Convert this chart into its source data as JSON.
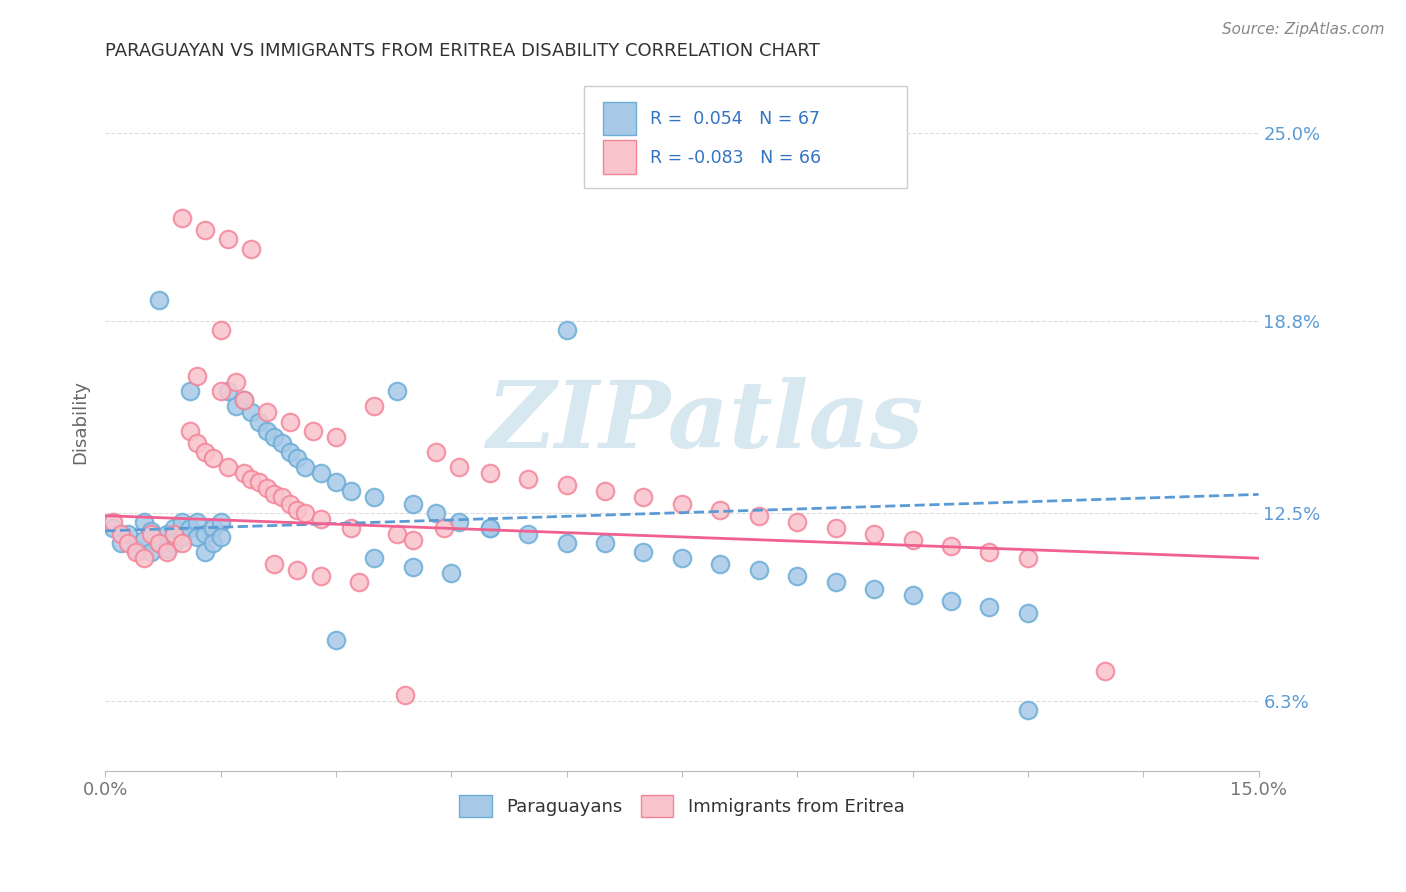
{
  "title": "PARAGUAYAN VS IMMIGRANTS FROM ERITREA DISABILITY CORRELATION CHART",
  "source_text": "Source: ZipAtlas.com",
  "ylabel": "Disability",
  "xlim": [
    0.0,
    0.15
  ],
  "ylim": [
    0.04,
    0.27
  ],
  "yticks": [
    0.063,
    0.125,
    0.188,
    0.25
  ],
  "xtick_positions": [
    0.0,
    0.015,
    0.03,
    0.045,
    0.06,
    0.075,
    0.09,
    0.105,
    0.12,
    0.135,
    0.15
  ],
  "blue_R": 0.054,
  "blue_N": 67,
  "pink_R": -0.083,
  "pink_N": 66,
  "blue_color": "#a8c8e8",
  "blue_edge_color": "#6baed6",
  "pink_color": "#f9c4cc",
  "pink_edge_color": "#f48498",
  "blue_line_color": "#5b9bd5",
  "pink_line_color": "#f06090",
  "legend_blue_label": "Paraguayans",
  "legend_pink_label": "Immigrants from Eritrea",
  "watermark_text": "ZIPatlas",
  "watermark_color": "#d8e8f0",
  "background_color": "#ffffff",
  "title_color": "#333333",
  "axis_label_color": "#666666",
  "tick_label_color": "#777777",
  "right_tick_color": "#5b9bd5",
  "grid_color": "#dddddd",
  "blue_trend_start_y": 0.119,
  "blue_trend_end_y": 0.131,
  "pink_trend_start_y": 0.124,
  "pink_trend_end_y": 0.11,
  "blue_scatter_x": [
    0.001,
    0.002,
    0.003,
    0.004,
    0.005,
    0.005,
    0.006,
    0.006,
    0.007,
    0.007,
    0.008,
    0.008,
    0.009,
    0.009,
    0.01,
    0.01,
    0.011,
    0.011,
    0.012,
    0.012,
    0.013,
    0.013,
    0.014,
    0.014,
    0.015,
    0.015,
    0.016,
    0.017,
    0.018,
    0.019,
    0.02,
    0.021,
    0.022,
    0.023,
    0.024,
    0.025,
    0.026,
    0.028,
    0.03,
    0.032,
    0.035,
    0.038,
    0.04,
    0.043,
    0.046,
    0.05,
    0.055,
    0.06,
    0.065,
    0.07,
    0.075,
    0.08,
    0.085,
    0.09,
    0.095,
    0.1,
    0.105,
    0.11,
    0.115,
    0.12,
    0.03,
    0.035,
    0.04,
    0.045,
    0.05,
    0.06,
    0.12
  ],
  "blue_scatter_y": [
    0.12,
    0.115,
    0.118,
    0.113,
    0.122,
    0.116,
    0.119,
    0.112,
    0.195,
    0.115,
    0.118,
    0.113,
    0.12,
    0.115,
    0.122,
    0.117,
    0.12,
    0.165,
    0.122,
    0.117,
    0.118,
    0.112,
    0.12,
    0.115,
    0.122,
    0.117,
    0.165,
    0.16,
    0.162,
    0.158,
    0.155,
    0.152,
    0.15,
    0.148,
    0.145,
    0.143,
    0.14,
    0.138,
    0.135,
    0.132,
    0.13,
    0.165,
    0.128,
    0.125,
    0.122,
    0.12,
    0.118,
    0.185,
    0.115,
    0.112,
    0.11,
    0.108,
    0.106,
    0.104,
    0.102,
    0.1,
    0.098,
    0.096,
    0.094,
    0.092,
    0.083,
    0.11,
    0.107,
    0.105,
    0.12,
    0.115,
    0.06
  ],
  "pink_scatter_x": [
    0.001,
    0.002,
    0.003,
    0.004,
    0.005,
    0.006,
    0.007,
    0.008,
    0.009,
    0.01,
    0.011,
    0.012,
    0.013,
    0.014,
    0.015,
    0.016,
    0.017,
    0.018,
    0.019,
    0.02,
    0.021,
    0.022,
    0.023,
    0.024,
    0.025,
    0.026,
    0.028,
    0.03,
    0.032,
    0.035,
    0.038,
    0.04,
    0.043,
    0.046,
    0.05,
    0.055,
    0.06,
    0.065,
    0.07,
    0.075,
    0.08,
    0.085,
    0.09,
    0.095,
    0.1,
    0.105,
    0.11,
    0.115,
    0.12,
    0.13,
    0.012,
    0.015,
    0.018,
    0.021,
    0.024,
    0.027,
    0.01,
    0.013,
    0.016,
    0.019,
    0.022,
    0.025,
    0.028,
    0.033,
    0.039,
    0.044
  ],
  "pink_scatter_y": [
    0.122,
    0.118,
    0.115,
    0.112,
    0.11,
    0.118,
    0.115,
    0.112,
    0.118,
    0.115,
    0.152,
    0.148,
    0.145,
    0.143,
    0.185,
    0.14,
    0.168,
    0.138,
    0.136,
    0.135,
    0.133,
    0.131,
    0.13,
    0.128,
    0.126,
    0.125,
    0.123,
    0.15,
    0.12,
    0.16,
    0.118,
    0.116,
    0.145,
    0.14,
    0.138,
    0.136,
    0.134,
    0.132,
    0.13,
    0.128,
    0.126,
    0.124,
    0.122,
    0.12,
    0.118,
    0.116,
    0.114,
    0.112,
    0.11,
    0.073,
    0.17,
    0.165,
    0.162,
    0.158,
    0.155,
    0.152,
    0.222,
    0.218,
    0.215,
    0.212,
    0.108,
    0.106,
    0.104,
    0.102,
    0.065,
    0.12
  ]
}
